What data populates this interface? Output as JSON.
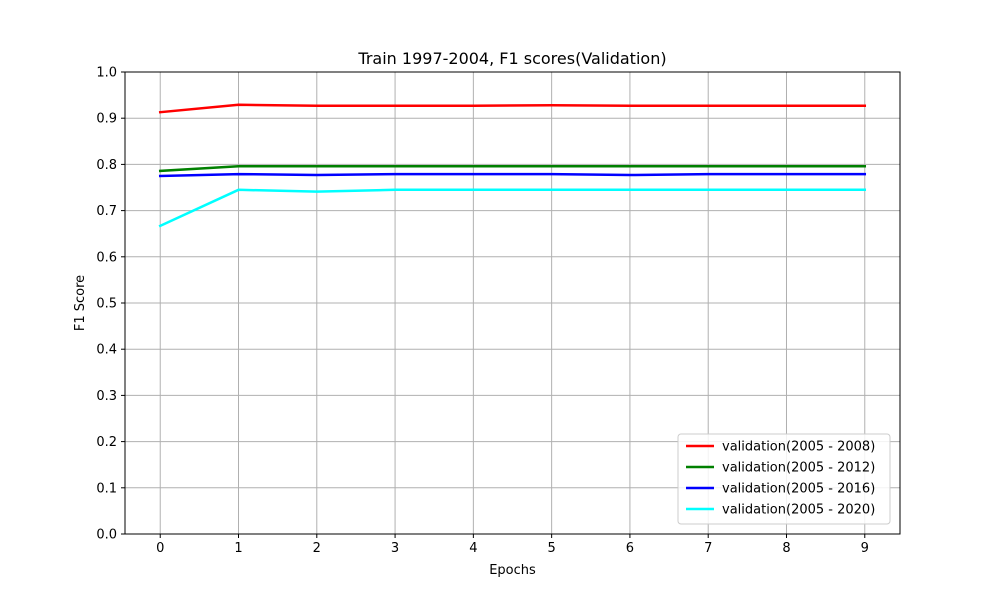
{
  "chart_data": {
    "type": "line",
    "title": "Train 1997-2004, F1 scores(Validation)",
    "xlabel": "Epochs",
    "ylabel": "F1 Score",
    "x": [
      0,
      1,
      2,
      3,
      4,
      5,
      6,
      7,
      8,
      9
    ],
    "xlim": [
      -0.45,
      9.45
    ],
    "ylim": [
      0.0,
      1.0
    ],
    "xticks": [
      "0",
      "1",
      "2",
      "3",
      "4",
      "5",
      "6",
      "7",
      "8",
      "9"
    ],
    "yticks": [
      "0.0",
      "0.1",
      "0.2",
      "0.3",
      "0.4",
      "0.5",
      "0.6",
      "0.7",
      "0.8",
      "0.9",
      "1.0"
    ],
    "grid": true,
    "legend_position": "lower-right",
    "series": [
      {
        "name": "validation(2005 - 2008)",
        "color": "#ff0000",
        "values": [
          0.913,
          0.929,
          0.927,
          0.927,
          0.927,
          0.928,
          0.927,
          0.927,
          0.927,
          0.927
        ]
      },
      {
        "name": "validation(2005 - 2012)",
        "color": "#008000",
        "values": [
          0.786,
          0.796,
          0.796,
          0.796,
          0.796,
          0.796,
          0.796,
          0.796,
          0.796,
          0.796
        ]
      },
      {
        "name": "validation(2005 - 2016)",
        "color": "#0000ff",
        "values": [
          0.775,
          0.779,
          0.777,
          0.779,
          0.779,
          0.779,
          0.777,
          0.779,
          0.779,
          0.779
        ]
      },
      {
        "name": "validation(2005 - 2020)",
        "color": "#00ffff",
        "values": [
          0.667,
          0.745,
          0.741,
          0.745,
          0.745,
          0.745,
          0.745,
          0.745,
          0.745,
          0.745
        ]
      }
    ]
  }
}
